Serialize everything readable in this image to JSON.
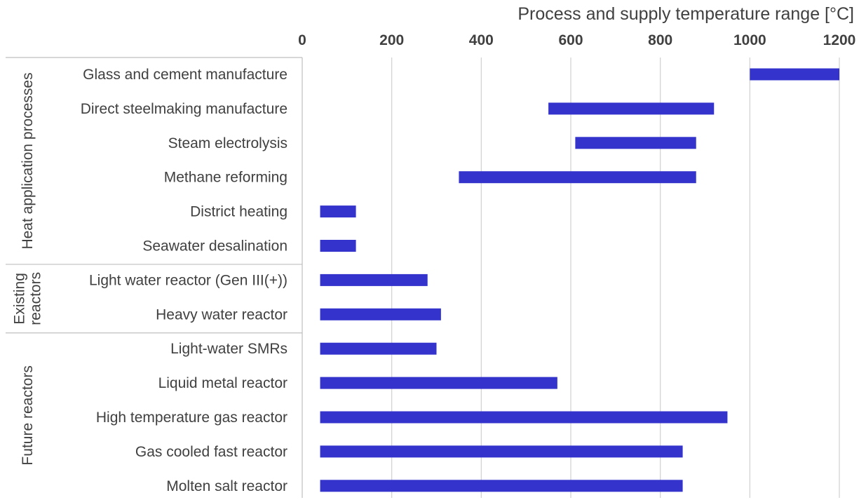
{
  "chart_data": {
    "type": "bar",
    "orientation": "horizontal-floating-range",
    "x_title": "Process and supply temperature range [°C]",
    "xlim": [
      0,
      1200
    ],
    "x_ticks": [
      0,
      200,
      400,
      600,
      800,
      1000,
      1200
    ],
    "grid": true,
    "bar_color": "#3434cc",
    "groups": [
      {
        "label": "Heat application processes",
        "items": [
          {
            "label": "Glass and cement manufacture",
            "min": 1000,
            "max": 1200
          },
          {
            "label": "Direct steelmaking manufacture",
            "min": 550,
            "max": 920
          },
          {
            "label": "Steam electrolysis",
            "min": 610,
            "max": 880
          },
          {
            "label": "Methane reforming",
            "min": 350,
            "max": 880
          },
          {
            "label": "District heating",
            "min": 40,
            "max": 120
          },
          {
            "label": "Seawater desalination",
            "min": 40,
            "max": 120
          }
        ]
      },
      {
        "label": "Existing reactors",
        "label_lines": [
          "Existing",
          "reactors"
        ],
        "items": [
          {
            "label": "Light water reactor (Gen III(+))",
            "min": 40,
            "max": 280
          },
          {
            "label": "Heavy water reactor",
            "min": 40,
            "max": 310
          }
        ]
      },
      {
        "label": "Future reactors",
        "items": [
          {
            "label": "Light-water SMRs",
            "min": 40,
            "max": 300
          },
          {
            "label": "Liquid metal reactor",
            "min": 40,
            "max": 570
          },
          {
            "label": "High temperature gas reactor",
            "min": 40,
            "max": 950
          },
          {
            "label": "Gas cooled fast reactor",
            "min": 40,
            "max": 850
          },
          {
            "label": "Molten salt reactor",
            "min": 40,
            "max": 850
          }
        ]
      }
    ]
  }
}
